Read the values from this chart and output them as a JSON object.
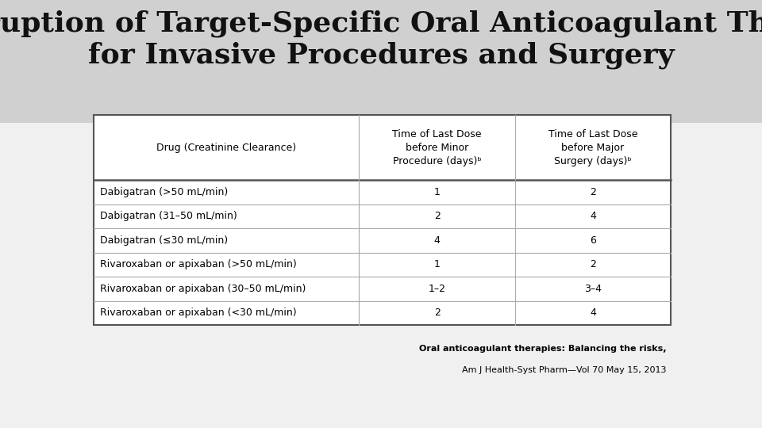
{
  "title_line1": "Interruption of Target-Specific Oral Anticoagulant Therapy",
  "title_line2": "for Invasive Procedures and Surgery",
  "title_bg_color": "#d0d0d0",
  "main_bg_color": "#e8e8e8",
  "header_col1": "Drug (Creatinine Clearance)",
  "header_col2": "Time of Last Dose\nbefore Minor\nProcedure (days)ᵇ",
  "header_col3": "Time of Last Dose\nbefore Major\nSurgery (days)ᵇ",
  "rows": [
    [
      "Dabigatran (>50 mL/min)",
      "1",
      "2"
    ],
    [
      "Dabigatran (31–50 mL/min)",
      "2",
      "4"
    ],
    [
      "Dabigatran (≤30 mL/min)",
      "4",
      "6"
    ],
    [
      "Rivaroxaban or apixaban (>50 mL/min)",
      "1",
      "2"
    ],
    [
      "Rivaroxaban or apixaban (30–50 mL/min)",
      "1–2",
      "3–4"
    ],
    [
      "Rivaroxaban or apixaban (<30 mL/min)",
      "2",
      "4"
    ]
  ],
  "footer_line1": "Oral anticoagulant therapies: Balancing the risks,",
  "footer_line2": "Am J Health-Syst Pharm—Vol 70 May 15, 2013",
  "table_border_color": "#555555",
  "row_line_color": "#aaaaaa",
  "header_line_color": "#555555",
  "title_fontsize": 26,
  "table_fontsize": 9,
  "footer_fontsize": 8
}
